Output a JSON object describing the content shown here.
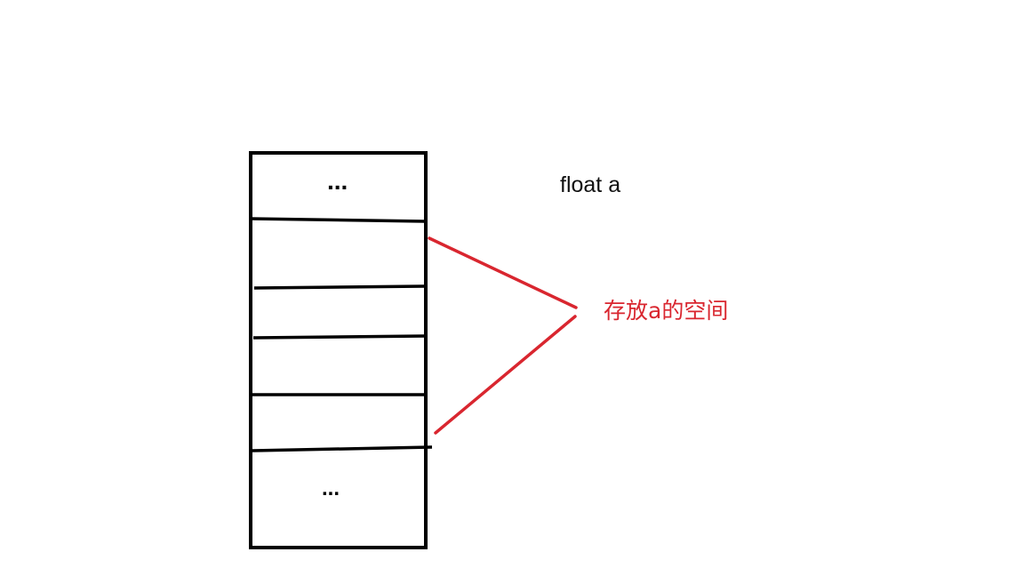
{
  "diagram": {
    "variable_label": "float a",
    "annotation_label": "存放a的空间",
    "ellipsis_top": "...",
    "ellipsis_bottom": "...",
    "colors": {
      "box_stroke": "#000000",
      "annotation": "#d9262f"
    },
    "memory_cells": [
      {
        "name": "cell-top-ellipsis"
      },
      {
        "name": "cell-a-byte-1"
      },
      {
        "name": "cell-a-byte-2"
      },
      {
        "name": "cell-a-byte-3"
      },
      {
        "name": "cell-a-byte-4"
      },
      {
        "name": "cell-bottom-ellipsis"
      }
    ]
  }
}
